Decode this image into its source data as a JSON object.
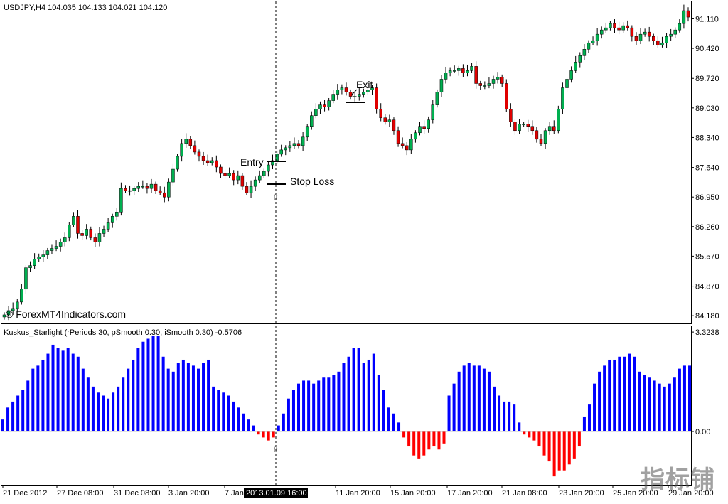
{
  "main_header": "USDJPY,H4  104.035 104.133 104.021 104.120",
  "indicator_header": "Kuskus_Starlight  (rPeriods 30, pSmooth 0.30, iSmooth 0.30)  -0.5706",
  "copyright": "© ForexMT4Indicators.com",
  "watermark": "指标铺",
  "cursor_time_label": "2013.01.09 16:00",
  "annotations": {
    "entry": "Entry",
    "exit": "Exit",
    "stop_loss": "Stop Loss"
  },
  "colors": {
    "bull": "#00b050",
    "bear": "#e00000",
    "wick": "#000000",
    "hist_pos": "#0000ff",
    "hist_neg": "#ff0000",
    "crosshair": "#000000"
  },
  "chart_data": [
    {
      "type": "candlestick",
      "title": "USDJPY,H4",
      "price_ticks": [
        "91.110",
        "90.420",
        "89.720",
        "89.030",
        "88.340",
        "87.640",
        "86.950",
        "86.260",
        "85.570",
        "84.870",
        "84.180"
      ],
      "price_tick_values": [
        91.11,
        90.42,
        89.72,
        89.03,
        88.34,
        87.64,
        86.95,
        86.26,
        85.57,
        84.87,
        84.18
      ],
      "ylim": [
        84.05,
        91.35
      ],
      "time_ticks": [
        "21 Dec 2012",
        "27 Dec 08:00",
        "31 Dec 08:00",
        "3 Jan 20:00",
        "7 Jan",
        "11 Jan 20:00",
        "15 Jan 20:00",
        "17 Jan 20:00",
        "21 Jan 08:00",
        "23 Jan 20:00",
        "25 Jan 20:00",
        "29 Jan 20:00"
      ],
      "close_path": [
        84.2,
        84.3,
        84.35,
        84.5,
        84.8,
        85.3,
        85.35,
        85.5,
        85.55,
        85.6,
        85.7,
        85.75,
        85.8,
        85.9,
        86.0,
        86.3,
        86.5,
        86.1,
        86.05,
        86.2,
        86.0,
        85.9,
        86.1,
        86.2,
        86.35,
        86.5,
        86.6,
        87.15,
        87.1,
        87.1,
        87.15,
        87.2,
        87.2,
        87.15,
        87.25,
        87.1,
        87.05,
        86.95,
        87.3,
        87.6,
        87.9,
        88.2,
        88.3,
        88.15,
        88.0,
        87.9,
        87.8,
        87.75,
        87.8,
        87.65,
        87.5,
        87.45,
        87.5,
        87.35,
        87.45,
        87.2,
        87.05,
        87.2,
        87.35,
        87.45,
        87.55,
        87.7,
        87.8,
        87.95,
        88.05,
        88.1,
        88.15,
        88.2,
        88.15,
        88.35,
        88.6,
        88.85,
        89.0,
        89.1,
        89.05,
        89.2,
        89.35,
        89.45,
        89.5,
        89.4,
        89.3,
        89.3,
        89.35,
        89.4,
        89.45,
        89.5,
        89.0,
        88.8,
        88.7,
        88.75,
        88.5,
        88.2,
        88.15,
        88.05,
        88.3,
        88.45,
        88.6,
        88.55,
        88.75,
        89.1,
        89.4,
        89.7,
        89.85,
        89.9,
        89.9,
        89.95,
        89.85,
        89.9,
        90.0,
        89.6,
        89.55,
        89.55,
        89.6,
        89.7,
        89.75,
        89.6,
        89.0,
        88.7,
        88.5,
        88.65,
        88.65,
        88.6,
        88.5,
        88.3,
        88.2,
        88.5,
        88.6,
        88.5,
        89.0,
        89.5,
        89.7,
        89.9,
        90.1,
        90.25,
        90.4,
        90.55,
        90.6,
        90.75,
        90.85,
        90.9,
        91.0,
        90.9,
        90.85,
        90.95,
        90.9,
        90.7,
        90.6,
        90.75,
        90.8,
        90.7,
        90.6,
        90.5,
        90.55,
        90.7,
        90.75,
        90.85,
        91.0,
        91.3,
        91.15
      ]
    },
    {
      "type": "histogram",
      "title": "Kuskus_Starlight",
      "y_ticks": [
        "3.3238",
        "0.00"
      ],
      "y_tick_values": [
        3.3238,
        0
      ],
      "ylim": [
        -1.6,
        3.35
      ],
      "values": [
        0.4,
        0.8,
        1.0,
        1.2,
        1.4,
        1.7,
        2.1,
        2.2,
        2.4,
        2.6,
        2.9,
        2.8,
        2.7,
        2.8,
        2.6,
        2.5,
        2.1,
        1.8,
        1.5,
        1.3,
        1.2,
        1.1,
        1.3,
        1.5,
        1.8,
        2.1,
        2.4,
        2.8,
        3.0,
        3.1,
        3.2,
        3.2,
        2.5,
        2.1,
        2.0,
        2.3,
        2.4,
        2.3,
        2.2,
        2.1,
        2.3,
        2.4,
        1.5,
        1.4,
        1.3,
        1.2,
        1.0,
        0.8,
        0.6,
        0.4,
        0.2,
        -0.1,
        -0.2,
        -0.3,
        -0.2,
        0.2,
        0.6,
        1.1,
        1.4,
        1.6,
        1.7,
        1.7,
        1.6,
        1.7,
        1.8,
        1.8,
        1.9,
        2.0,
        2.3,
        2.5,
        2.8,
        2.8,
        2.3,
        2.4,
        2.6,
        1.9,
        1.4,
        0.8,
        0.6,
        0.3,
        -0.2,
        -0.5,
        -0.8,
        -0.9,
        -0.8,
        -0.6,
        -0.5,
        -0.6,
        -0.4,
        1.2,
        1.6,
        2.0,
        2.2,
        2.3,
        2.2,
        2.2,
        2.1,
        2.0,
        1.5,
        1.2,
        1.0,
        1.0,
        0.9,
        0.3,
        -0.1,
        -0.2,
        -0.3,
        -0.5,
        -0.8,
        -1.0,
        -1.5,
        -1.3,
        -1.3,
        -1.1,
        -0.9,
        -0.5,
        0.5,
        0.9,
        1.6,
        2.0,
        2.2,
        2.4,
        2.4,
        2.5,
        2.5,
        2.6,
        2.5,
        2.0,
        1.9,
        1.8,
        1.7,
        1.6,
        1.5,
        1.6,
        1.8,
        2.1,
        2.2,
        2.2
      ]
    }
  ]
}
